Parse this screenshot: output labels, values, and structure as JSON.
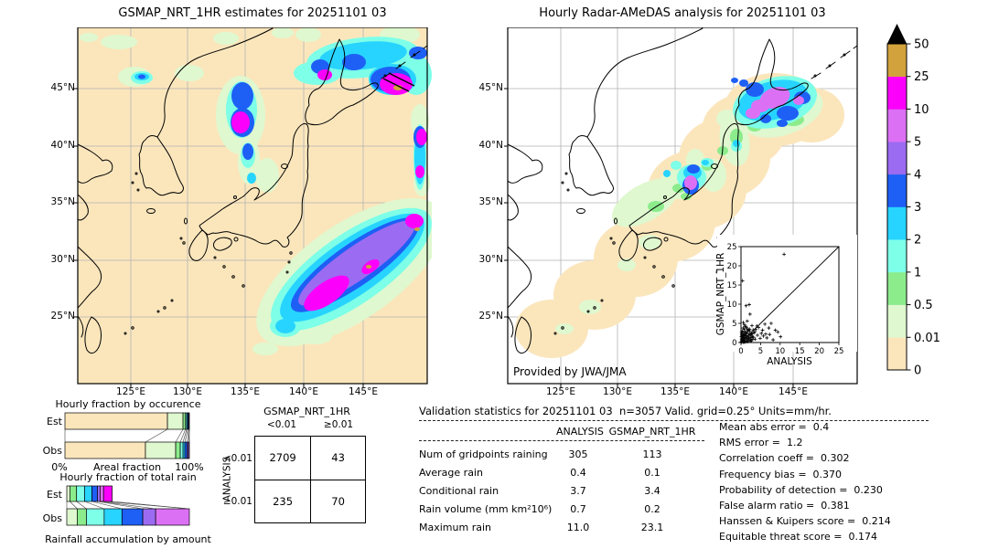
{
  "colorbar": {
    "tick_labels": [
      "0",
      "0.01",
      "0.5",
      "1",
      "2",
      "3",
      "4",
      "5",
      "10",
      "25",
      "50"
    ],
    "segment_colors": [
      "#FBE6BC",
      "#DFF8CF",
      "#8CEC8C",
      "#7DFFE8",
      "#27D4FF",
      "#1E5FF5",
      "#9B6BF1",
      "#DC70F5",
      "#FB00FB",
      "#D2A23D"
    ],
    "over_color": "#000000",
    "units": "mm/hr"
  },
  "chart_data": [
    {
      "type": "heatmap",
      "name": "gsmap-map",
      "title": "GSMAP_NRT_1HR estimates for 20251101 03",
      "x_ticks": [
        "125°E",
        "130°E",
        "135°E",
        "140°E",
        "145°E"
      ],
      "y_ticks": [
        "45°N",
        "40°N",
        "35°N",
        "30°N",
        "25°N"
      ],
      "levels": [
        0,
        0.01,
        0.5,
        1,
        2,
        3,
        4,
        5,
        10,
        25,
        50
      ],
      "units": "mm/hr"
    },
    {
      "type": "heatmap",
      "name": "radar-amedas-map",
      "title": "Hourly Radar-AMeDAS analysis for 20251101 03",
      "x_ticks": [
        "125°E",
        "130°E",
        "135°E",
        "140°E",
        "145°E"
      ],
      "y_ticks": [
        "45°N",
        "40°N",
        "35°N",
        "30°N",
        "25°N"
      ],
      "levels": [
        0,
        0.01,
        0.5,
        1,
        2,
        3,
        4,
        5,
        10,
        25,
        50
      ],
      "units": "mm/hr",
      "credit": "Provided by JWA/JMA"
    },
    {
      "type": "scatter",
      "name": "validation-scatter",
      "xlabel": "ANALYSIS",
      "ylabel": "GSMAP_NRT_1HR",
      "x_ticks": [
        0,
        5,
        10,
        15,
        20,
        25
      ],
      "y_ticks": [
        0,
        5,
        10,
        15,
        20,
        25
      ],
      "xlim": [
        0,
        25
      ],
      "ylim": [
        0,
        25
      ],
      "diagonal": true,
      "points": [
        [
          11,
          23
        ],
        [
          0.4,
          16.1
        ],
        [
          1.3,
          9.6
        ],
        [
          2.1,
          9.9
        ],
        [
          2.3,
          7.4
        ],
        [
          0.6,
          5.2
        ],
        [
          6.1,
          4.8
        ],
        [
          7.7,
          5
        ],
        [
          4.5,
          3.9
        ],
        [
          8.8,
          3.2
        ],
        [
          9.4,
          2.7
        ],
        [
          7.3,
          2.1
        ],
        [
          10.1,
          1.5
        ],
        [
          8.2,
          0.7
        ],
        [
          5.7,
          1.7
        ],
        [
          4.9,
          1.1
        ],
        [
          3.3,
          2.5
        ],
        [
          2,
          3.3
        ],
        [
          1.1,
          4.2
        ],
        [
          3.8,
          3.4
        ],
        [
          5.2,
          2.4
        ],
        [
          6.6,
          1.2
        ],
        [
          4.2,
          1.9
        ],
        [
          3.6,
          0.9
        ],
        [
          2.8,
          4.4
        ],
        [
          1.6,
          5.6
        ],
        [
          0.1,
          0.2
        ],
        [
          0.2,
          0.5
        ],
        [
          0.3,
          1.1
        ],
        [
          0.4,
          0.3
        ],
        [
          0.5,
          1.8
        ],
        [
          0.6,
          0.7
        ],
        [
          0.7,
          2.3
        ],
        [
          0.8,
          1.4
        ],
        [
          0.9,
          0.2
        ],
        [
          1,
          2.8
        ],
        [
          1.1,
          1
        ],
        [
          1.2,
          0.4
        ],
        [
          1.3,
          1.9
        ],
        [
          1.4,
          2.6
        ],
        [
          1.5,
          0.8
        ],
        [
          1.6,
          1.5
        ],
        [
          1.7,
          3.1
        ],
        [
          1.8,
          0.3
        ],
        [
          1.9,
          2.2
        ],
        [
          2,
          1.2
        ],
        [
          2.1,
          0.6
        ],
        [
          2.2,
          2.9
        ],
        [
          2.3,
          1.7
        ],
        [
          2.4,
          0.9
        ],
        [
          2.5,
          2
        ],
        [
          2.6,
          1.3
        ],
        [
          2.7,
          0.5
        ],
        [
          2.8,
          2.4
        ],
        [
          2.9,
          1.6
        ],
        [
          3,
          0.8
        ],
        [
          0.2,
          2.1
        ],
        [
          0.3,
          3
        ],
        [
          0.5,
          0.1
        ],
        [
          0.8,
          3.4
        ],
        [
          1,
          0.1
        ],
        [
          1.5,
          3.6
        ],
        [
          0.1,
          1.5
        ],
        [
          0.4,
          2.7
        ],
        [
          3.2,
          1.4
        ],
        [
          3.5,
          2.8
        ],
        [
          0.15,
          0.9
        ],
        [
          0.25,
          1.7
        ],
        [
          0.7,
          0.15
        ],
        [
          1.25,
          2.45
        ],
        [
          2.15,
          3.5
        ],
        [
          0.9,
          4.6
        ],
        [
          1.4,
          4
        ],
        [
          0.55,
          3.8
        ],
        [
          0.05,
          0.05
        ],
        [
          0.35,
          0.6
        ],
        [
          0.65,
          1.25
        ],
        [
          1.05,
          1.75
        ],
        [
          1.55,
          0.25
        ],
        [
          2.45,
          0.35
        ],
        [
          0.85,
          2.05
        ],
        [
          0.15,
          2.6
        ],
        [
          1.85,
          1.05
        ],
        [
          2.65,
          2.2
        ],
        [
          3.1,
          3.3
        ],
        [
          4.1,
          4.3
        ],
        [
          5.5,
          3.2
        ],
        [
          6.3,
          2.2
        ],
        [
          7.1,
          3.8
        ]
      ]
    },
    {
      "type": "bar",
      "name": "hourly-fraction-by-occurrence",
      "title": "Hourly fraction by occurence",
      "orientation": "horizontal-stacked",
      "rows": [
        "Est",
        "Obs"
      ],
      "xlabel": "Areal fraction",
      "x_min_label": "0%",
      "x_max_label": "100%",
      "est_segments": [
        {
          "level": 0,
          "frac": 0.824
        },
        {
          "level": 1,
          "frac": 0.125
        },
        {
          "level": 2,
          "frac": 0.02
        },
        {
          "level": 3,
          "frac": 0.01
        },
        {
          "level": 4,
          "frac": 0.008
        },
        {
          "level": 5,
          "frac": 0.008
        },
        {
          "level": 6,
          "frac": 0.005
        }
      ],
      "obs_segments": [
        {
          "level": 0,
          "frac": 0.647
        },
        {
          "level": 1,
          "frac": 0.243
        },
        {
          "level": 2,
          "frac": 0.037
        },
        {
          "level": 3,
          "frac": 0.022
        },
        {
          "level": 4,
          "frac": 0.015
        },
        {
          "level": 5,
          "frac": 0.018
        },
        {
          "level": 6,
          "frac": 0.011
        },
        {
          "level": 7,
          "frac": 0.007
        }
      ]
    },
    {
      "type": "bar",
      "name": "hourly-fraction-of-total-rain",
      "title": "Hourly fraction of total rain",
      "orientation": "horizontal-stacked",
      "rows": [
        "Est",
        "Obs"
      ],
      "xlabel": "Rainfall accumulation by amount",
      "est_segments": [
        {
          "level": 1,
          "frac": 0.025
        },
        {
          "level": 2,
          "frac": 0.055
        },
        {
          "level": 3,
          "frac": 0.065
        },
        {
          "level": 4,
          "frac": 0.06
        },
        {
          "level": 5,
          "frac": 0.045
        },
        {
          "level": 6,
          "frac": 0.022
        },
        {
          "level": 7,
          "frac": 0.028
        },
        {
          "level": 8,
          "frac": 0.07
        }
      ],
      "obs_segments": [
        {
          "level": 1,
          "frac": 0.085
        },
        {
          "level": 2,
          "frac": 0.075
        },
        {
          "level": 3,
          "frac": 0.145
        },
        {
          "level": 4,
          "frac": 0.145
        },
        {
          "level": 5,
          "frac": 0.17
        },
        {
          "level": 6,
          "frac": 0.105
        },
        {
          "level": 7,
          "frac": 0.275
        }
      ]
    },
    {
      "type": "table",
      "name": "contingency-table",
      "col_header": "GSMAP_NRT_1HR",
      "row_header": "ANALYSIS",
      "col_labels": [
        "<0.01",
        "≥0.01"
      ],
      "row_labels": [
        "<0.01",
        "≥0.01"
      ],
      "cells": [
        [
          "2709",
          "43"
        ],
        [
          "235",
          "70"
        ]
      ]
    },
    {
      "type": "table",
      "name": "validation-statistics",
      "title": "Validation statistics for 20251101 03  n=3057 Valid. grid=0.25° Units=mm/hr.",
      "columns": [
        "ANALYSIS",
        "GSMAP_NRT_1HR"
      ],
      "rows": [
        {
          "label": "Num of gridpoints raining",
          "analysis": "305",
          "gsmap": "113"
        },
        {
          "label": "Average rain",
          "analysis": "0.4",
          "gsmap": "0.1"
        },
        {
          "label": "Conditional rain",
          "analysis": "3.7",
          "gsmap": "3.4"
        },
        {
          "label": "Rain volume (mm km²10⁶)",
          "analysis": "0.7",
          "gsmap": "0.2"
        },
        {
          "label": "Maximum rain",
          "analysis": "11.0",
          "gsmap": "23.1"
        }
      ],
      "scores": [
        {
          "label": "Mean abs error",
          "value": "0.4"
        },
        {
          "label": "RMS error",
          "value": "1.2"
        },
        {
          "label": "Correlation coeff",
          "value": "0.302"
        },
        {
          "label": "Frequency bias",
          "value": "0.370"
        },
        {
          "label": "Probability of detection",
          "value": "0.230"
        },
        {
          "label": "False alarm ratio",
          "value": "0.381"
        },
        {
          "label": "Hanssen & Kuipers score",
          "value": "0.214"
        },
        {
          "label": "Equitable threat score",
          "value": "0.174"
        }
      ]
    }
  ]
}
